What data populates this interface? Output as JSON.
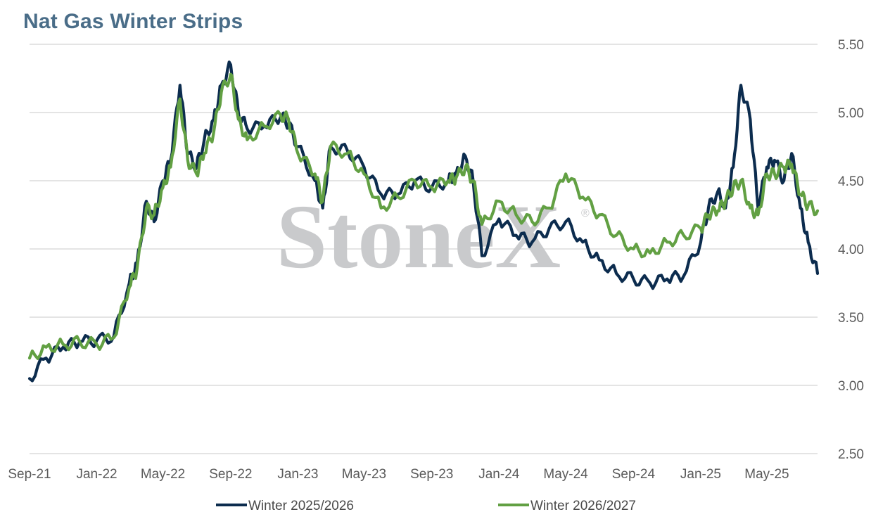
{
  "chart_data": {
    "type": "line",
    "title": "Nat Gas Winter Strips",
    "watermark": "StoneX",
    "ylim": [
      2.5,
      5.5
    ],
    "y_ticks": [
      "5.50",
      "5.00",
      "4.50",
      "4.00",
      "3.50",
      "3.00",
      "2.50"
    ],
    "x_ticks": [
      "Sep-21",
      "Jan-22",
      "May-22",
      "Sep-22",
      "Jan-23",
      "May-23",
      "Sep-23",
      "Jan-24",
      "May-24",
      "Sep-24",
      "Jan-25",
      "May-25"
    ],
    "grid": true,
    "legend_position": "bottom",
    "x": [
      "2021-09-01",
      "2021-10-01",
      "2021-11-01",
      "2021-12-01",
      "2022-01-01",
      "2022-02-01",
      "2022-03-01",
      "2022-03-15",
      "2022-04-01",
      "2022-04-15",
      "2022-05-01",
      "2022-05-15",
      "2022-06-01",
      "2022-06-15",
      "2022-07-01",
      "2022-07-15",
      "2022-08-01",
      "2022-08-15",
      "2022-09-01",
      "2022-09-15",
      "2022-10-01",
      "2022-11-01",
      "2022-12-01",
      "2022-12-15",
      "2023-01-01",
      "2023-02-01",
      "2023-02-15",
      "2023-03-01",
      "2023-04-01",
      "2023-05-01",
      "2023-06-01",
      "2023-07-01",
      "2023-08-01",
      "2023-09-01",
      "2023-10-01",
      "2023-10-15",
      "2023-11-01",
      "2023-11-15",
      "2023-12-01",
      "2024-01-01",
      "2024-02-01",
      "2024-03-01",
      "2024-04-01",
      "2024-05-01",
      "2024-06-01",
      "2024-07-01",
      "2024-08-01",
      "2024-09-01",
      "2024-10-01",
      "2024-11-01",
      "2024-12-01",
      "2025-01-01",
      "2025-01-15",
      "2025-02-01",
      "2025-02-15",
      "2025-03-01",
      "2025-03-15",
      "2025-04-01",
      "2025-04-15",
      "2025-05-01",
      "2025-05-15",
      "2025-06-01",
      "2025-06-15",
      "2025-07-01",
      "2025-07-15",
      "2025-08-01"
    ],
    "series": [
      {
        "name": "Winter 2025/2026",
        "color": "#0c2c4e",
        "values": [
          3.05,
          3.2,
          3.28,
          3.32,
          3.33,
          3.36,
          3.75,
          3.9,
          4.35,
          4.2,
          4.5,
          4.65,
          5.2,
          4.7,
          4.6,
          4.8,
          4.95,
          5.2,
          5.35,
          5.0,
          4.88,
          4.9,
          4.97,
          4.92,
          4.75,
          4.5,
          4.3,
          4.75,
          4.72,
          4.6,
          4.4,
          4.4,
          4.5,
          4.45,
          4.5,
          4.55,
          4.68,
          4.5,
          3.95,
          4.22,
          4.1,
          4.05,
          4.15,
          4.2,
          4.05,
          3.92,
          3.82,
          3.78,
          3.75,
          3.78,
          3.8,
          4.05,
          4.3,
          4.42,
          4.3,
          4.6,
          5.2,
          4.95,
          4.3,
          4.6,
          4.65,
          4.5,
          4.7,
          4.3,
          4.05,
          3.82
        ]
      },
      {
        "name": "Winter 2026/2027",
        "color": "#62a043",
        "values": [
          3.2,
          3.28,
          3.3,
          3.32,
          3.3,
          3.35,
          3.72,
          3.85,
          4.3,
          4.25,
          4.45,
          4.6,
          5.1,
          4.65,
          4.55,
          4.7,
          4.85,
          5.15,
          5.28,
          4.95,
          4.8,
          4.9,
          4.98,
          4.95,
          4.7,
          4.55,
          4.35,
          4.75,
          4.7,
          4.55,
          4.3,
          4.38,
          4.5,
          4.45,
          4.5,
          4.52,
          4.6,
          4.5,
          4.18,
          4.35,
          4.25,
          4.2,
          4.3,
          4.55,
          4.38,
          4.25,
          4.1,
          4.0,
          3.97,
          4.05,
          4.1,
          4.15,
          4.25,
          4.28,
          4.35,
          4.45,
          4.5,
          4.3,
          4.25,
          4.55,
          4.55,
          4.6,
          4.62,
          4.4,
          4.32,
          4.28
        ]
      }
    ]
  }
}
